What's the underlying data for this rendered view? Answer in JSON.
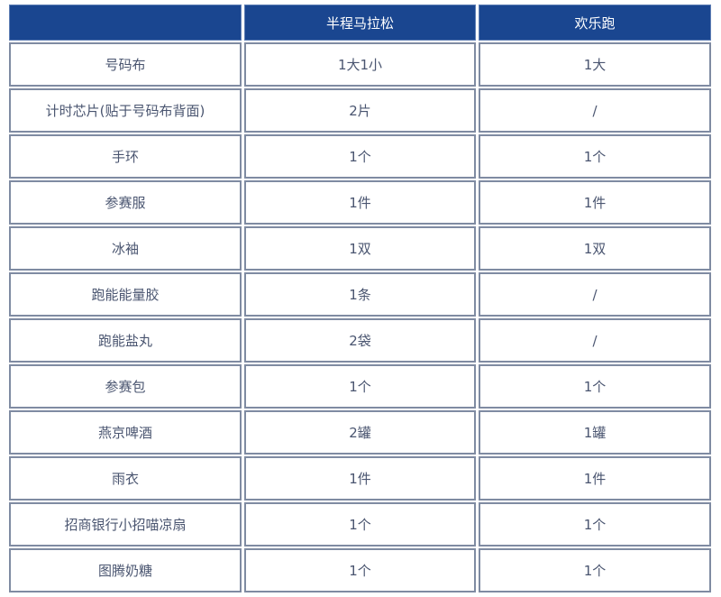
{
  "table": {
    "headers": [
      "",
      "半程马拉松",
      "欢乐跑"
    ],
    "rows": [
      [
        "号码布",
        "1大1小",
        "1大"
      ],
      [
        "计时芯片(贴于号码布背面)",
        "2片",
        "/"
      ],
      [
        "手环",
        "1个",
        "1个"
      ],
      [
        "参赛服",
        "1件",
        "1件"
      ],
      [
        "冰袖",
        "1双",
        "1双"
      ],
      [
        "跑能能量胶",
        "1条",
        "/"
      ],
      [
        "跑能盐丸",
        "2袋",
        "/"
      ],
      [
        "参赛包",
        "1个",
        "1个"
      ],
      [
        "燕京啤酒",
        "2罐",
        "1罐"
      ],
      [
        "雨衣",
        "1件",
        "1件"
      ],
      [
        "招商银行小招喵凉扇",
        "1个",
        "1个"
      ],
      [
        "图腾奶糖",
        "1个",
        "1个"
      ]
    ]
  },
  "colors": {
    "header_bg": "#1a4690",
    "border": "#7f8ba2",
    "text": "#4a5570"
  }
}
